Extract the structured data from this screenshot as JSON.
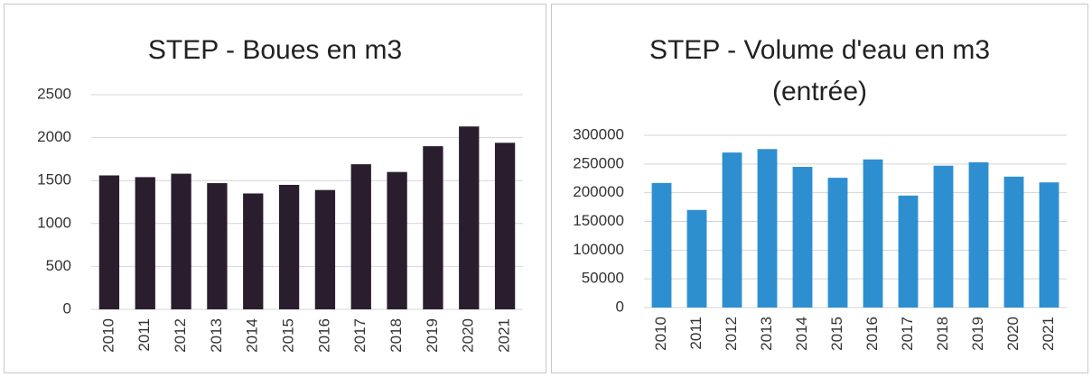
{
  "chart_data": [
    {
      "type": "bar",
      "title": "STEP - Boues en m3",
      "categories": [
        "2010",
        "2011",
        "2012",
        "2013",
        "2014",
        "2015",
        "2016",
        "2017",
        "2018",
        "2019",
        "2020",
        "2021"
      ],
      "values": [
        1560,
        1540,
        1580,
        1470,
        1350,
        1450,
        1390,
        1690,
        1600,
        1900,
        2130,
        1940
      ],
      "color": "#2a1e2e",
      "ylim": [
        0,
        2500
      ],
      "yticks": [
        0,
        500,
        1000,
        1500,
        2000,
        2500
      ],
      "grid": true
    },
    {
      "type": "bar",
      "title": "STEP - Volume d'eau en m3 (entrée)",
      "categories": [
        "2010",
        "2011",
        "2012",
        "2013",
        "2014",
        "2015",
        "2016",
        "2017",
        "2018",
        "2019",
        "2020",
        "2021"
      ],
      "values": [
        217000,
        170000,
        270000,
        276000,
        245000,
        226000,
        258000,
        195000,
        247000,
        253000,
        228000,
        218000
      ],
      "color": "#2e8fd0",
      "ylim": [
        0,
        300000
      ],
      "yticks": [
        0,
        50000,
        100000,
        150000,
        200000,
        250000,
        300000
      ],
      "grid": true
    }
  ]
}
